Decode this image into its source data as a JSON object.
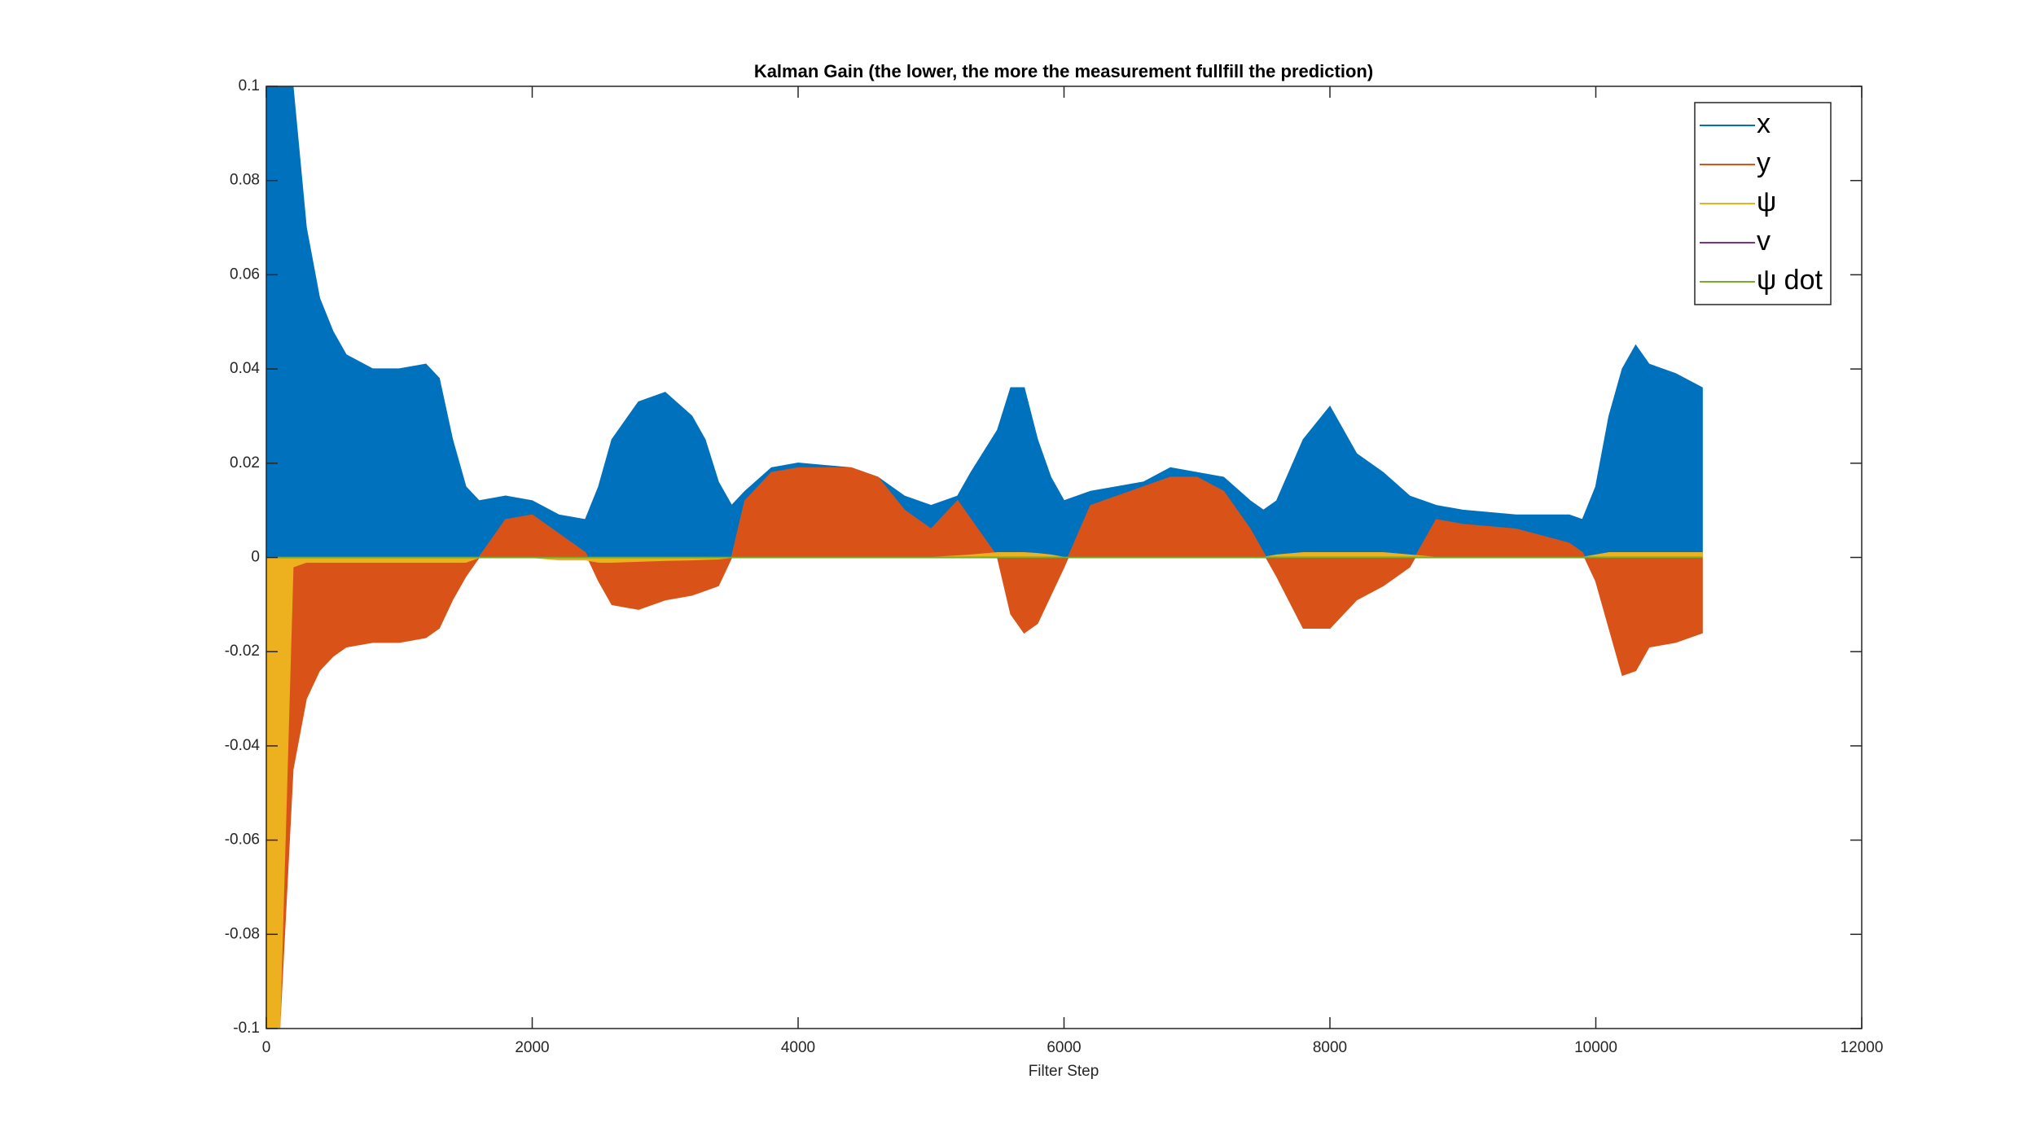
{
  "chart_data": {
    "type": "area",
    "title": "Kalman Gain (the lower, the more the measurement fullfill the prediction)",
    "x_label": "Filter Step",
    "x": [
      0,
      100,
      200,
      300,
      400,
      500,
      600,
      800,
      1000,
      1200,
      1300,
      1400,
      1500,
      1600,
      1800,
      2000,
      2200,
      2400,
      2500,
      2600,
      2800,
      3000,
      3200,
      3300,
      3400,
      3500,
      3600,
      3800,
      4000,
      4400,
      4600,
      4800,
      5000,
      5200,
      5300,
      5500,
      5600,
      5700,
      5800,
      5900,
      6000,
      6200,
      6600,
      6800,
      7000,
      7200,
      7400,
      7500,
      7600,
      7800,
      8000,
      8200,
      8400,
      8600,
      8800,
      9000,
      9400,
      9800,
      9900,
      10000,
      10100,
      10200,
      10300,
      10400,
      10600,
      10800
    ],
    "series": [
      {
        "name": "x",
        "color": "#0072bd",
        "values": [
          0.1,
          0.1,
          0.1,
          0.07,
          0.055,
          0.048,
          0.043,
          0.04,
          0.04,
          0.041,
          0.038,
          0.025,
          0.015,
          0.012,
          0.013,
          0.012,
          0.009,
          0.008,
          0.015,
          0.025,
          0.033,
          0.035,
          0.03,
          0.025,
          0.016,
          0.011,
          0.014,
          0.019,
          0.02,
          0.019,
          0.017,
          0.013,
          0.011,
          0.013,
          0.018,
          0.027,
          0.036,
          0.036,
          0.025,
          0.017,
          0.012,
          0.014,
          0.016,
          0.019,
          0.018,
          0.017,
          0.012,
          0.01,
          0.012,
          0.025,
          0.032,
          0.022,
          0.018,
          0.013,
          0.011,
          0.01,
          0.009,
          0.009,
          0.008,
          0.015,
          0.03,
          0.04,
          0.045,
          0.041,
          0.039,
          0.036
        ]
      },
      {
        "name": "y",
        "color": "#d95319",
        "values": [
          -0.1,
          -0.1,
          -0.045,
          -0.03,
          -0.024,
          -0.021,
          -0.019,
          -0.018,
          -0.018,
          -0.017,
          -0.015,
          -0.009,
          -0.004,
          0,
          0.008,
          0.009,
          0.005,
          0.001,
          -0.005,
          -0.01,
          -0.011,
          -0.009,
          -0.008,
          -0.007,
          -0.006,
          0,
          0.012,
          0.018,
          0.019,
          0.019,
          0.017,
          0.01,
          0.006,
          0.012,
          0.008,
          0,
          -0.012,
          -0.016,
          -0.014,
          -0.008,
          -0.002,
          0.011,
          0.015,
          0.017,
          0.017,
          0.014,
          0.006,
          0.001,
          -0.004,
          -0.015,
          -0.015,
          -0.009,
          -0.006,
          -0.002,
          0.008,
          0.007,
          0.006,
          0.003,
          0.001,
          -0.005,
          -0.015,
          -0.025,
          -0.024,
          -0.019,
          -0.018,
          -0.016
        ]
      },
      {
        "name": "ψ",
        "color": "#edb120",
        "values": [
          -0.1,
          -0.1,
          -0.002,
          -0.001,
          -0.001,
          -0.001,
          -0.001,
          -0.001,
          -0.001,
          -0.001,
          -0.001,
          -0.001,
          -0.001,
          0,
          0,
          0,
          -0.0005,
          -0.0005,
          -0.001,
          -0.001,
          -0.0008,
          -0.0006,
          -0.0005,
          -0.0004,
          -0.0003,
          0,
          0,
          0,
          0,
          0,
          0,
          0,
          0,
          0.0003,
          0.0005,
          0.001,
          0.001,
          0.001,
          0.0008,
          0.0005,
          0,
          0,
          0,
          0,
          0,
          0,
          0,
          0,
          0.0005,
          0.001,
          0.001,
          0.001,
          0.001,
          0.0005,
          0,
          0,
          0,
          0,
          0,
          0.0005,
          0.001,
          0.001,
          0.001,
          0.001,
          0.001,
          0.001
        ]
      },
      {
        "name": "v",
        "color": "#7e2f8e",
        "values": [
          0,
          0,
          0,
          0,
          0,
          0,
          0,
          0,
          0,
          0,
          0,
          0,
          0,
          0,
          0,
          0,
          0,
          0,
          0,
          0,
          0,
          0,
          0,
          0,
          0,
          0,
          0,
          0,
          0,
          0,
          0,
          0,
          0,
          0,
          0,
          0,
          0,
          0,
          0,
          0,
          0,
          0,
          0,
          0,
          0,
          0,
          0,
          0,
          0,
          0,
          0,
          0,
          0,
          0,
          0,
          0,
          0,
          0,
          0,
          0,
          0,
          0,
          0,
          0,
          0,
          0
        ]
      },
      {
        "name": "ψ dot",
        "color": "#77ac30",
        "values": [
          0,
          0,
          0,
          0,
          0,
          0,
          0,
          0,
          0,
          0,
          0,
          0,
          0,
          0,
          0,
          0,
          0,
          0,
          0,
          0,
          0,
          0,
          0,
          0,
          0,
          0,
          0,
          0,
          0,
          0,
          0,
          0,
          0,
          0,
          0,
          0,
          0,
          0,
          0,
          0,
          0,
          0,
          0,
          0,
          0,
          0,
          0,
          0,
          0,
          0,
          0,
          0,
          0,
          0,
          0,
          0,
          0,
          0,
          0,
          0,
          0,
          0,
          0,
          0,
          0,
          0
        ]
      }
    ],
    "xlim": [
      0,
      12000
    ],
    "xticks": [
      0,
      2000,
      4000,
      6000,
      8000,
      10000,
      12000
    ],
    "ylim": [
      -0.1,
      0.1
    ],
    "yticks": [
      -0.1,
      -0.08,
      -0.06,
      -0.04,
      -0.02,
      0,
      0.02,
      0.04,
      0.06,
      0.08,
      0.1
    ],
    "grid": false,
    "legend": "northeast"
  }
}
